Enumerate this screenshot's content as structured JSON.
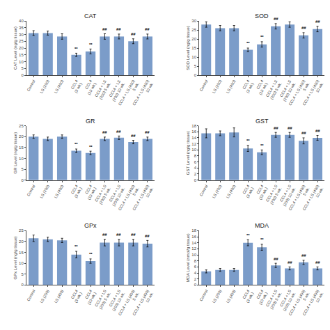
{
  "chart_data": [
    {
      "type": "bar",
      "title": "CAT",
      "ylabel": "CAT Level (ng/g tissue)",
      "categories": [
        "Control",
        "LS (200)",
        "LS (400)",
        "CCL4\n(3 wk.)",
        "CCL4\n(10 wk.)",
        "CCL4 + LS\n(200) 5 wk.",
        "CCL4 + LS\n(200) 10 wk.",
        "CCL4 + LS (400)\n5 wk.",
        "CCL4 + LS (400)\n10 wk."
      ],
      "values": [
        31.0,
        31.0,
        28.5,
        15.0,
        17.5,
        28.5,
        28.5,
        25.0,
        28.5
      ],
      "errors": [
        1.8,
        1.5,
        2.0,
        1.2,
        1.8,
        2.0,
        1.8,
        1.8,
        1.8
      ],
      "annotations": [
        {
          "category": "CCL4\n(3 wk.)",
          "text": "**"
        },
        {
          "category": "CCL4\n(10 wk.)",
          "text": "**"
        },
        {
          "category": "CCL4 + LS\n(200) 5 wk.",
          "text": "##"
        },
        {
          "category": "CCL4 + LS\n(200) 10 wk.",
          "text": "##"
        },
        {
          "category": "CCL4 + LS (400)\n5 wk.",
          "text": "##"
        },
        {
          "category": "CCL4 + LS (400)\n10 wk.",
          "text": "##"
        }
      ],
      "color": "#7b9cc9",
      "ylim": [
        0,
        40
      ],
      "yticks": [
        0,
        5,
        10,
        15,
        20,
        25,
        30,
        35,
        40
      ],
      "grid": false
    },
    {
      "type": "bar",
      "title": "SOD",
      "ylabel": "SOD Level (ng/g tissue)",
      "categories": [
        "Control",
        "LS (200)",
        "LS (400)",
        "CCL4\n(3 wk.)",
        "CCL4\n(10 wk.)",
        "CCL4 + LS\n(200) 5 wk.",
        "CCL4 + LS\n(200) 10 wk.",
        "CCL4 + LS (400)\n5 wk.",
        "CCL4 + LS (400)\n10 wk."
      ],
      "values": [
        28.0,
        26.0,
        26.0,
        14.0,
        17.0,
        27.0,
        28.0,
        22.0,
        25.5
      ],
      "errors": [
        1.5,
        1.5,
        1.5,
        1.0,
        1.5,
        1.5,
        1.5,
        1.5,
        1.5
      ],
      "annotations": [
        {
          "category": "CCL4\n(3 wk.)",
          "text": "**"
        },
        {
          "category": "CCL4\n(10 wk.)",
          "text": "**"
        },
        {
          "category": "CCL4 + LS\n(200) 5 wk.",
          "text": "##"
        },
        {
          "category": "CCL4 + LS\n(200) 10 wk.",
          "text": "##"
        },
        {
          "category": "CCL4 + LS (400)\n5 wk.",
          "text": "##"
        },
        {
          "category": "CCL4 + LS (400)\n10 wk.",
          "text": "##"
        }
      ],
      "color": "#7b9cc9",
      "ylim": [
        0,
        30
      ],
      "yticks": [
        0,
        5,
        10,
        15,
        20,
        25,
        30
      ],
      "grid": false
    },
    {
      "type": "bar",
      "title": "GR",
      "ylabel": "GR Level (ng/g tissue)",
      "categories": [
        "Control",
        "LS (200)",
        "LS (400)",
        "CCL4\n(3 wk.)",
        "CCL4\n(10 wk.)",
        "CCL4 + LS\n(200) 5 wk.",
        "CCL4 + LS\n(200) 10 wk.",
        "CCL4 + LS (400)\n5 wk.",
        "CCL4 + LS (400)\n10 wk."
      ],
      "values": [
        20.0,
        19.0,
        20.0,
        13.5,
        12.5,
        19.0,
        19.5,
        17.5,
        19.0
      ],
      "errors": [
        0.8,
        0.8,
        0.8,
        0.8,
        0.8,
        0.8,
        0.8,
        0.8,
        0.8
      ],
      "annotations": [
        {
          "category": "CCL4\n(3 wk.)",
          "text": "**"
        },
        {
          "category": "CCL4\n(10 wk.)",
          "text": "**"
        },
        {
          "category": "CCL4 + LS\n(200) 5 wk.",
          "text": "##"
        },
        {
          "category": "CCL4 + LS\n(200) 10 wk.",
          "text": "##"
        },
        {
          "category": "CCL4 + LS (400)\n5 wk.",
          "text": "##"
        },
        {
          "category": "CCL4 + LS (400)\n10 wk.",
          "text": "##"
        }
      ],
      "color": "#7b9cc9",
      "ylim": [
        0,
        25
      ],
      "yticks": [
        0,
        5,
        10,
        15,
        20,
        25
      ],
      "grid": false
    },
    {
      "type": "bar",
      "title": "GST",
      "ylabel": "GST Level (ng/g tissue)",
      "categories": [
        "Control",
        "LS (200)",
        "LS (400)",
        "CCL4\n(3 wk.)",
        "CCL4\n(10 wk.)",
        "CCL4 + LS\n(200) 5 wk.",
        "CCL4 + LS\n(200) 10 wk.",
        "CCL4 + LS (400)\n5 wk.",
        "CCL4 + LS (400)\n10 wk."
      ],
      "values": [
        15.5,
        15.5,
        15.8,
        10.5,
        9.2,
        15.0,
        15.0,
        13.0,
        14.0
      ],
      "errors": [
        1.5,
        0.8,
        1.5,
        1.0,
        0.8,
        0.8,
        0.8,
        1.0,
        0.8
      ],
      "annotations": [
        {
          "category": "CCL4\n(3 wk.)",
          "text": "**"
        },
        {
          "category": "CCL4\n(10 wk.)",
          "text": "**"
        },
        {
          "category": "CCL4 + LS\n(200) 5 wk.",
          "text": "##"
        },
        {
          "category": "CCL4 + LS\n(200) 10 wk.",
          "text": "##"
        },
        {
          "category": "CCL4 + LS (400)\n5 wk.",
          "text": "##"
        },
        {
          "category": "CCL4 + LS (400)\n10 wk.",
          "text": "##"
        }
      ],
      "color": "#7b9cc9",
      "ylim": [
        0,
        18
      ],
      "yticks": [
        0,
        2,
        4,
        6,
        8,
        10,
        12,
        14,
        16,
        18
      ],
      "grid": false
    },
    {
      "type": "bar",
      "title": "GPx",
      "ylabel": "GPx Level (ng/g tissue)",
      "categories": [
        "Control",
        "LS (200)",
        "LS (400)",
        "CCL4\n(3 wk.)",
        "CCL4\n(10 wk.)",
        "CCL4 + LS\n(200) 5 wk.",
        "CCL4 + LS\n(200) 10 wk.",
        "CCL4 + LS (400)\n5 wk.",
        "CCL4 + LS (400)\n10 wk."
      ],
      "values": [
        21.5,
        21.0,
        20.5,
        14.0,
        11.0,
        19.5,
        19.5,
        19.5,
        19.0
      ],
      "errors": [
        1.5,
        1.0,
        1.0,
        1.5,
        1.0,
        1.5,
        1.5,
        1.5,
        1.5
      ],
      "annotations": [
        {
          "category": "CCL4\n(3 wk.)",
          "text": "**"
        },
        {
          "category": "CCL4\n(10 wk.)",
          "text": "**"
        },
        {
          "category": "CCL4 + LS\n(200) 5 wk.",
          "text": "##"
        },
        {
          "category": "CCL4 + LS\n(200) 10 wk.",
          "text": "##"
        },
        {
          "category": "CCL4 + LS (400)\n5 wk.",
          "text": "##"
        },
        {
          "category": "CCL4 + LS (400)\n10 wk.",
          "text": "##"
        }
      ],
      "color": "#7b9cc9",
      "ylim": [
        0,
        25
      ],
      "yticks": [
        0,
        5,
        10,
        15,
        20,
        25
      ],
      "grid": false
    },
    {
      "type": "bar",
      "title": "MDA",
      "ylabel": "MDA Level (nmol/g tissue)",
      "categories": [
        "Control",
        "LS (200)",
        "LS (400)",
        "CCL4\n(3 wk.)",
        "CCL4\n(10 wk.)",
        "CCL4 + LS\n(200) 5 wk.",
        "CCL4 + LS\n(200) 10 wk.",
        "CCL4 + LS (400)\n5 wk.",
        "CCL4 + LS (400)\n10 wk."
      ],
      "values": [
        4.5,
        5.0,
        5.0,
        14.0,
        12.5,
        6.5,
        5.5,
        7.5,
        5.5
      ],
      "errors": [
        0.5,
        0.5,
        0.5,
        1.0,
        1.0,
        0.7,
        0.5,
        0.7,
        0.5
      ],
      "annotations": [
        {
          "category": "CCL4\n(3 wk.)",
          "text": "**"
        },
        {
          "category": "CCL4\n(10 wk.)",
          "text": "**"
        },
        {
          "category": "CCL4 + LS\n(200) 5 wk.",
          "text": "##"
        },
        {
          "category": "CCL4 + LS\n(200) 10 wk.",
          "text": "##"
        },
        {
          "category": "CCL4 + LS (400)\n5 wk.",
          "text": "##"
        },
        {
          "category": "CCL4 + LS (400)\n10 wk.",
          "text": "##"
        }
      ],
      "color": "#7b9cc9",
      "ylim": [
        0,
        18
      ],
      "yticks": [
        0,
        2,
        4,
        6,
        8,
        10,
        12,
        14,
        16,
        18
      ],
      "grid": false
    }
  ]
}
